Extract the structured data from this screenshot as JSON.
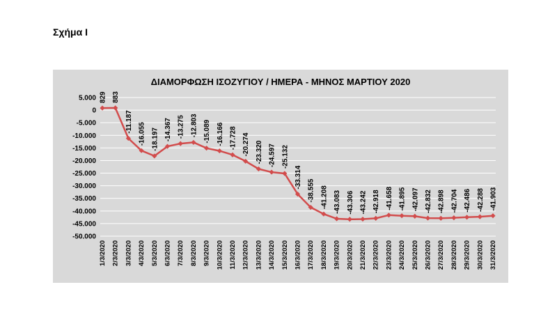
{
  "figure_caption": "Σχήμα Ι",
  "chart_data": {
    "type": "line",
    "title": "ΔΙΑΜΟΡΦΩΣΗ ΙΣΟΖΥΓΙΟΥ / ΗΜΕΡΑ - ΜΗΝΟΣ ΜΑΡΤΙΟΥ 2020",
    "xlabel": "",
    "ylabel": "",
    "ylim": [
      -50000,
      5000
    ],
    "yticks": [
      5000,
      0,
      -5000,
      -10000,
      -15000,
      -20000,
      -25000,
      -30000,
      -35000,
      -40000,
      -45000,
      -50000
    ],
    "ytick_labels": [
      "5.000",
      "0",
      "-5.000",
      "-10.000",
      "-15.000",
      "-20.000",
      "-25.000",
      "-30.000",
      "-35.000",
      "-40.000",
      "-45.000",
      "-50.000"
    ],
    "grid": true,
    "legend": "none",
    "line_color": "#d24c4c",
    "background_color": "#d9d9d9",
    "categories": [
      "1/3/2020",
      "2/3/2020",
      "3/3/2020",
      "4/3/2020",
      "5/3/2020",
      "6/3/2020",
      "7/3/2020",
      "8/3/2020",
      "9/3/2020",
      "10/3/2020",
      "11/3/2020",
      "12/3/2020",
      "13/3/2020",
      "14/3/2020",
      "15/3/2020",
      "16/3/2020",
      "17/3/2020",
      "18/3/2020",
      "19/3/2020",
      "20/3/2020",
      "21/3/2020",
      "22/3/2020",
      "23/3/2020",
      "24/3/2020",
      "25/3/2020",
      "26/3/2020",
      "27/3/2020",
      "28/3/2020",
      "29/3/2020",
      "30/3/2020",
      "31/3/2020"
    ],
    "values": [
      829,
      883,
      -11187,
      -16055,
      -18197,
      -14367,
      -13275,
      -12803,
      -15089,
      -16166,
      -17728,
      -20274,
      -23320,
      -24597,
      -25132,
      -33314,
      -38555,
      -41208,
      -43083,
      -43306,
      -43242,
      -42918,
      -41658,
      -41895,
      -42097,
      -42832,
      -42898,
      -42704,
      -42486,
      -42288,
      -41903
    ],
    "data_labels": [
      "829",
      "883",
      "-11.187",
      "-16.055",
      "-18.197",
      "-14.367",
      "-13.275",
      "-12.803",
      "-15.089",
      "-16.166",
      "-17.728",
      "-20.274",
      "-23.320",
      "-24.597",
      "-25.132",
      "-33.314",
      "-38.555",
      "-41.208",
      "-43.083",
      "-43.306",
      "-43.242",
      "-42.918",
      "-41.658",
      "-41.895",
      "-42.097",
      "-42.832",
      "-42.898",
      "-42.704",
      "-42.486",
      "-42.288",
      "-41.903"
    ]
  }
}
